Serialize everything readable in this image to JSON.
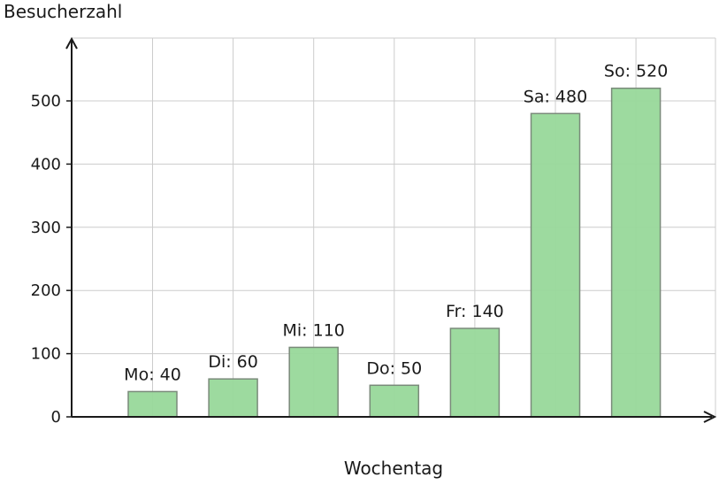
{
  "chart_data": {
    "type": "bar",
    "categories": [
      "Mo",
      "Di",
      "Mi",
      "Do",
      "Fr",
      "Sa",
      "So"
    ],
    "values": [
      40,
      60,
      110,
      50,
      140,
      480,
      520
    ],
    "data_labels": [
      "Mo: 40",
      "Di: 60",
      "Mi: 110",
      "Do: 50",
      "Fr: 140",
      "Sa: 480",
      "So: 520"
    ],
    "title": "",
    "xlabel": "Wochentag",
    "ylabel": "Besucherzahl",
    "ylim": [
      0,
      600
    ],
    "yticks": [
      0,
      100,
      200,
      300,
      400,
      500
    ],
    "grid": true,
    "bar_color": "#98d89a",
    "bar_edge_color": "#7a8a7a",
    "axis_color": "#1a1a1a",
    "grid_color": "#cccccc"
  }
}
